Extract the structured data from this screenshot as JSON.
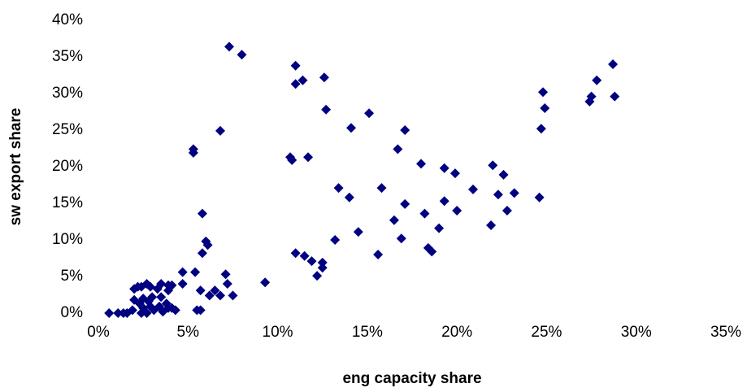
{
  "chart_data": {
    "type": "scatter",
    "x_label": "eng capacity share",
    "y_label": "sw export share",
    "color": "#000080",
    "marker": "diamond",
    "x": [
      7.3,
      8.0,
      11.0,
      11.0,
      11.4,
      12.6,
      12.7,
      14.1,
      15.1,
      17.1,
      6.8,
      5.3,
      5.3,
      10.7,
      10.8,
      11.7,
      16.7,
      18.0,
      19.3,
      19.9,
      20.9,
      22.0,
      22.6,
      22.3,
      23.2,
      22.8,
      21.9,
      24.6,
      24.7,
      24.8,
      24.9,
      27.4,
      27.5,
      27.8,
      28.7,
      28.8,
      13.4,
      14.0,
      15.8,
      17.1,
      16.5,
      16.9,
      14.5,
      15.6,
      18.2,
      19.0,
      19.3,
      20.0,
      18.4,
      18.6,
      13.2,
      11.0,
      11.5,
      11.9,
      12.2,
      12.5,
      12.5,
      9.3,
      5.8,
      6.0,
      6.1,
      5.8,
      5.4,
      4.7,
      4.7,
      7.1,
      7.2,
      7.5,
      6.8,
      6.5,
      6.2,
      5.7,
      5.5,
      5.7,
      0.6,
      1.1,
      1.4,
      1.6,
      1.9,
      2.0,
      2.2,
      2.4,
      2.7,
      2.9,
      3.3,
      3.5,
      3.9,
      3.9,
      4.1,
      2.0,
      2.3,
      2.5,
      2.8,
      3.0,
      2.5,
      2.7,
      2.4,
      3.1,
      3.4,
      3.6,
      3.8,
      3.9,
      4.1,
      4.3,
      3.5,
      2.9
    ],
    "values": [
      36.4,
      35.3,
      33.8,
      31.3,
      31.8,
      32.2,
      27.8,
      25.3,
      27.3,
      25.0,
      24.9,
      22.4,
      21.9,
      21.3,
      20.9,
      21.3,
      22.4,
      20.4,
      19.8,
      19.1,
      16.9,
      20.2,
      18.9,
      16.2,
      16.4,
      14.0,
      12.0,
      15.8,
      25.2,
      30.2,
      28.0,
      28.9,
      29.6,
      31.8,
      34.0,
      29.6,
      17.1,
      15.8,
      17.1,
      14.9,
      12.7,
      10.2,
      11.1,
      8.0,
      13.6,
      11.6,
      15.3,
      14.0,
      8.9,
      8.4,
      10.0,
      8.2,
      7.8,
      7.1,
      5.1,
      6.9,
      6.2,
      4.2,
      13.6,
      9.8,
      9.3,
      8.2,
      5.6,
      5.6,
      4.0,
      5.3,
      4.0,
      2.4,
      2.4,
      3.1,
      2.4,
      3.1,
      0.4,
      0.4,
      0,
      0,
      0,
      0,
      0.4,
      3.3,
      3.6,
      3.6,
      4.0,
      3.6,
      3.3,
      4.0,
      3.8,
      3.1,
      3.8,
      1.8,
      1.3,
      2.0,
      1.6,
      2.2,
      0.7,
      0,
      0,
      0.4,
      0.9,
      0.2,
      1.3,
      0.7,
      0.7,
      0.4,
      2.2,
      0.9
    ],
    "xlim": [
      0,
      35
    ],
    "ylim": [
      0,
      40
    ],
    "xticks": [
      {
        "value": 0,
        "label": "0%"
      },
      {
        "value": 5,
        "label": "5%"
      },
      {
        "value": 10,
        "label": "10%"
      },
      {
        "value": 15,
        "label": "15%"
      },
      {
        "value": 20,
        "label": "20%"
      },
      {
        "value": 25,
        "label": "25%"
      },
      {
        "value": 30,
        "label": "30%"
      },
      {
        "value": 35,
        "label": "35%"
      }
    ],
    "yticks": [
      {
        "value": 0,
        "label": "0%"
      },
      {
        "value": 5,
        "label": "5%"
      },
      {
        "value": 10,
        "label": "10%"
      },
      {
        "value": 15,
        "label": "15%"
      },
      {
        "value": 20,
        "label": "20%"
      },
      {
        "value": 25,
        "label": "25%"
      },
      {
        "value": 30,
        "label": "30%"
      },
      {
        "value": 35,
        "label": "35%"
      },
      {
        "value": 40,
        "label": "40%"
      }
    ]
  }
}
